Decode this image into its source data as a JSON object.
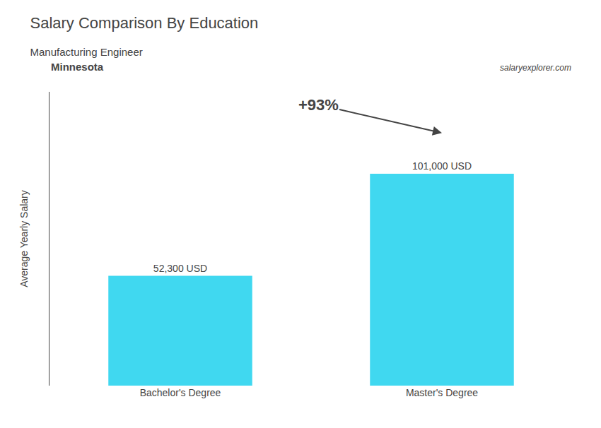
{
  "chart_data": {
    "type": "bar",
    "title": "Salary Comparison By Education",
    "subtitle": "Manufacturing Engineer",
    "ylabel": "Average Yearly Salary",
    "categories": [
      "Bachelor's Degree",
      "Master's Degree"
    ],
    "values": [
      52300,
      101000
    ],
    "value_labels": [
      "52,300 USD",
      "101,000 USD"
    ],
    "data_labels": true,
    "color": "#40d8f0",
    "ylim": [
      0,
      140000
    ],
    "tick_labels": "x",
    "grid": false,
    "annotations": [
      "Minnesota",
      "+93%",
      "salaryexplorer.com"
    ]
  }
}
